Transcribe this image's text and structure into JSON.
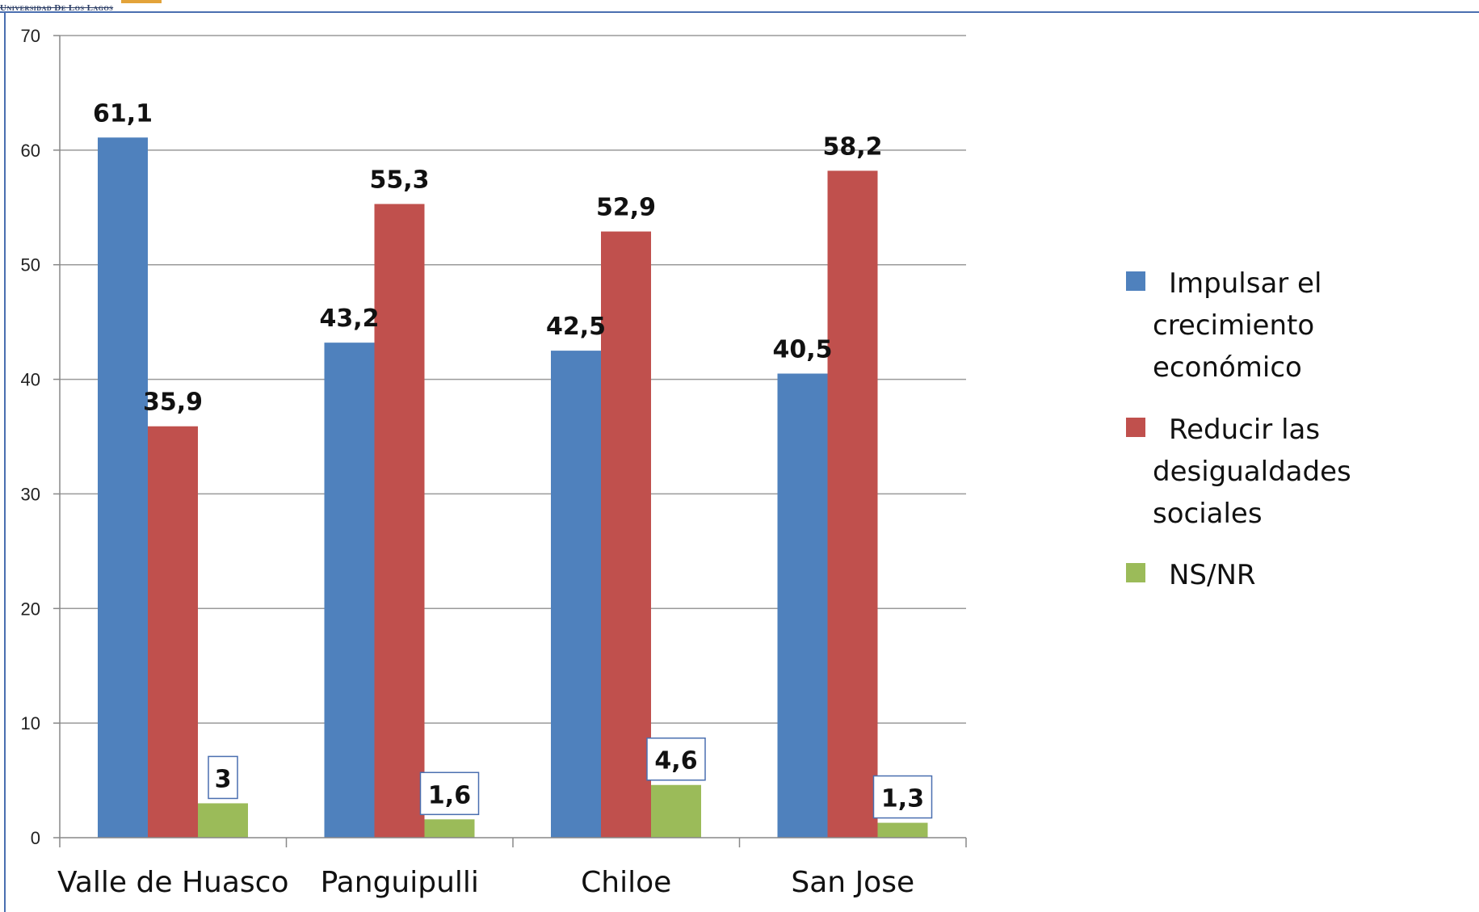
{
  "header": {
    "logo_text": "Universidad De Los Lagos"
  },
  "chart_data": {
    "type": "bar",
    "title": "",
    "xlabel": "",
    "ylabel": "",
    "categories": [
      "Valle de Huasco",
      "Panguipulli",
      "Chiloe",
      "San Jose"
    ],
    "series": [
      {
        "name": "Impulsar el crecimiento económico",
        "legend_lines": [
          "Impulsar el",
          "crecimiento",
          "económico"
        ],
        "color": "#4f81bd",
        "values": [
          61.1,
          43.2,
          42.5,
          40.5
        ],
        "labels": [
          "61,1",
          "43,2",
          "42,5",
          "40,5"
        ]
      },
      {
        "name": "Reducir las desigualdades sociales",
        "legend_lines": [
          "Reducir las",
          "desigualdades",
          "sociales"
        ],
        "color": "#c0504d",
        "values": [
          35.9,
          55.3,
          52.9,
          58.2
        ],
        "labels": [
          "35,9",
          "55,3",
          "52,9",
          "58,2"
        ]
      },
      {
        "name": "NS/NR",
        "legend_lines": [
          "NS/NR"
        ],
        "color": "#9bbb59",
        "values": [
          3,
          1.6,
          4.6,
          1.3
        ],
        "labels": [
          "3",
          "1,6",
          "4,6",
          "1,3"
        ]
      }
    ],
    "ylim": [
      0,
      70
    ],
    "yticks": [
      0,
      10,
      20,
      30,
      40,
      50,
      60,
      70
    ],
    "grid": true,
    "legend_position": "right",
    "boxed_series_labels": "NS/NR"
  }
}
